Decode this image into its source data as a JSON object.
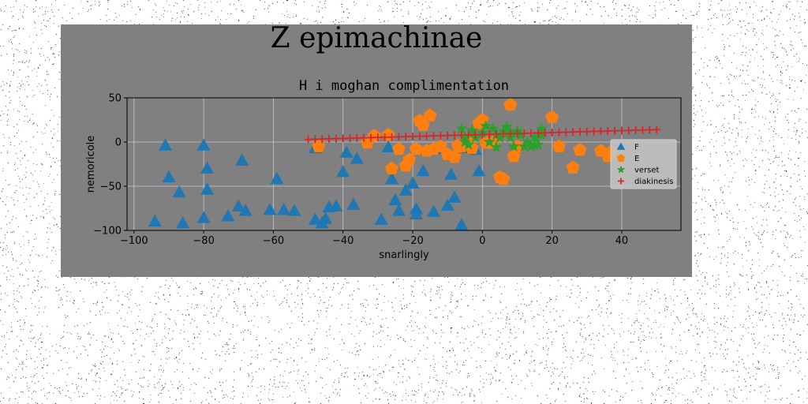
{
  "figure": {
    "suptitle": "Z epimachinae"
  },
  "chart_data": {
    "type": "scatter",
    "title": "H i moghan complimentation",
    "xlabel": "snarlingly",
    "ylabel": "nemoricole",
    "xlim": [
      -102,
      57
    ],
    "ylim": [
      -100,
      50
    ],
    "xticks": [
      -100,
      -80,
      -60,
      -40,
      -20,
      0,
      20,
      40
    ],
    "yticks": [
      -100,
      -50,
      0,
      50
    ],
    "grid": true,
    "legend_position": "center-right",
    "series": [
      {
        "name": "F",
        "marker": "triangle",
        "color": "#1f77b4",
        "x": [
          -91,
          -80,
          -79,
          -90,
          -87,
          -79,
          -69,
          -59,
          -61,
          -94,
          -86,
          -80,
          -73,
          -68,
          -70,
          -57,
          -54,
          -48,
          -46,
          -44,
          -45,
          -42,
          -39,
          -40,
          -36,
          -37,
          -29,
          -26,
          -24,
          -25,
          -22,
          -20,
          -19,
          -19,
          -17,
          -14,
          -10,
          -9,
          -8,
          -6,
          -4,
          -2,
          -1,
          -48,
          -27,
          -13
        ],
        "y": [
          -4,
          -4,
          -30,
          -40,
          -57,
          -54,
          -21,
          -42,
          -77,
          -90,
          -92,
          -86,
          -84,
          -78,
          -73,
          -77,
          -78,
          -88,
          -92,
          -74,
          -87,
          -73,
          -12,
          -34,
          -19,
          -71,
          -88,
          -42,
          -78,
          -66,
          -55,
          -47,
          -76,
          -82,
          -33,
          -79,
          -72,
          -37,
          -63,
          -94,
          -7,
          -9,
          -33,
          -7,
          -6,
          -8
        ]
      },
      {
        "name": "E",
        "marker": "pentagon",
        "color": "#ff7f0e",
        "x": [
          -47,
          -33,
          -31,
          -27,
          -26,
          -24,
          -22,
          -21,
          -19,
          -18,
          -17,
          -16,
          -15,
          -14,
          -12,
          -10,
          -8,
          -7,
          -6,
          -4,
          -3,
          -1,
          0,
          1,
          3,
          5,
          6,
          8,
          9,
          10,
          20,
          22,
          26,
          28,
          34,
          36,
          37
        ],
        "y": [
          -5,
          -1,
          7,
          8,
          -30,
          -8,
          -27,
          -20,
          -8,
          24,
          19,
          -10,
          30,
          -8,
          -5,
          -14,
          -17,
          -4,
          -5,
          0,
          -7,
          21,
          25,
          -1,
          -1,
          -40,
          -42,
          42,
          -16,
          -5,
          28,
          -5,
          -29,
          -9,
          -10,
          -16,
          -11
        ]
      },
      {
        "name": "verset",
        "marker": "star",
        "color": "#2ca02c",
        "x": [
          -6,
          -5,
          -4,
          -3,
          -2,
          0,
          2,
          3,
          4,
          5,
          6,
          7,
          8,
          9,
          10,
          11,
          13,
          14,
          15,
          16,
          17,
          -5,
          1,
          4,
          8,
          12,
          15,
          17
        ],
        "y": [
          15,
          5,
          -3,
          13,
          5,
          10,
          0,
          15,
          -6,
          5,
          12,
          17,
          5,
          -5,
          12,
          8,
          0,
          -5,
          5,
          -3,
          15,
          0,
          18,
          8,
          10,
          -5,
          -3,
          8
        ]
      },
      {
        "name": "diakinesis",
        "marker": "plus",
        "color": "#d62728",
        "x_start": -50,
        "x_end": 50,
        "count": 51,
        "y_start": 3,
        "y_end": 14
      }
    ]
  }
}
